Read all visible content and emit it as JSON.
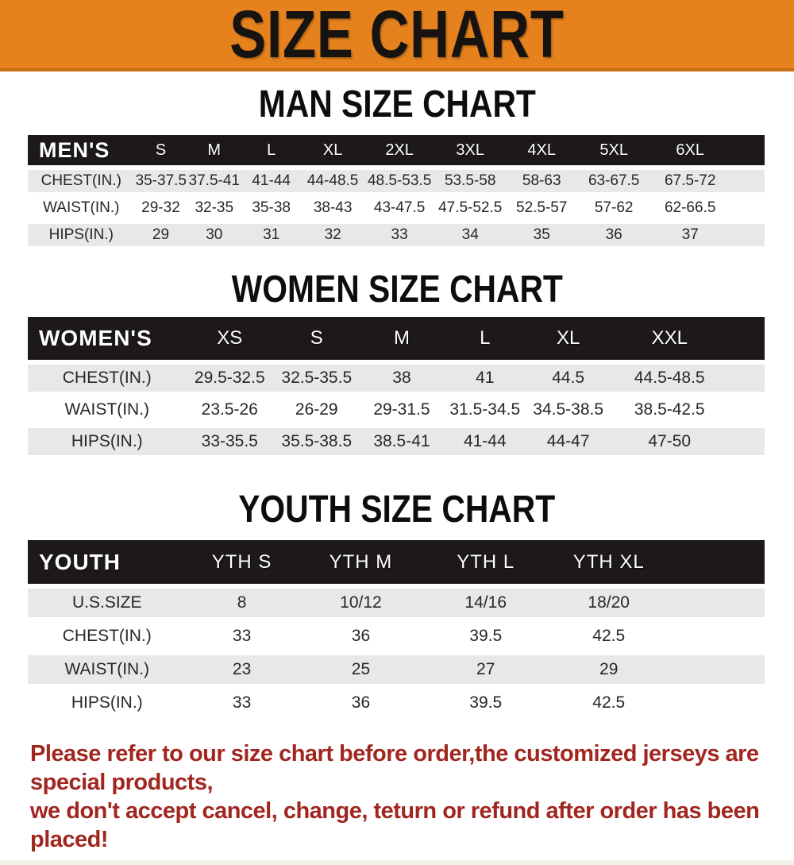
{
  "banner": {
    "title": "SIZE CHART",
    "background_color": "#e6821e",
    "text_color": "#171310"
  },
  "sections": {
    "men": {
      "heading": "MAN SIZE CHART",
      "table": {
        "header": [
          "MEN'S",
          "S",
          "M",
          "L",
          "XL",
          "2XL",
          "3XL",
          "4XL",
          "5XL",
          "6XL",
          ""
        ],
        "rows": [
          [
            "CHEST(IN.)",
            "35-37.5",
            "37.5-41",
            "41-44",
            "44-48.5",
            "48.5-53.5",
            "53.5-58",
            "58-63",
            "63-67.5",
            "67.5-72",
            ""
          ],
          [
            "WAIST(IN.)",
            "29-32",
            "32-35",
            "35-38",
            "38-43",
            "43-47.5",
            "47.5-52.5",
            "52.5-57",
            "57-62",
            "62-66.5",
            ""
          ],
          [
            "HIPS(IN.)",
            "29",
            "30",
            "31",
            "32",
            "33",
            "34",
            "35",
            "36",
            "37",
            ""
          ]
        ]
      }
    },
    "women": {
      "heading": "WOMEN SIZE CHART",
      "table": {
        "header": [
          "WOMEN'S",
          "XS",
          "S",
          "M",
          "L",
          "XL",
          "XXL",
          ""
        ],
        "rows": [
          [
            "CHEST(IN.)",
            "29.5-32.5",
            "32.5-35.5",
            "38",
            "41",
            "44.5",
            "44.5-48.5",
            ""
          ],
          [
            "WAIST(IN.)",
            "23.5-26",
            "26-29",
            "29-31.5",
            "31.5-34.5",
            "34.5-38.5",
            "38.5-42.5",
            ""
          ],
          [
            "HIPS(IN.)",
            "33-35.5",
            "35.5-38.5",
            "38.5-41",
            "41-44",
            "44-47",
            "47-50",
            ""
          ]
        ]
      }
    },
    "youth": {
      "heading": "YOUTH SIZE CHART",
      "table": {
        "header": [
          "YOUTH",
          "YTH S",
          "YTH M",
          "YTH L",
          "YTH XL",
          ""
        ],
        "rows": [
          [
            "U.S.SIZE",
            "8",
            "10/12",
            "14/16",
            "18/20",
            ""
          ],
          [
            "CHEST(IN.)",
            "33",
            "36",
            "39.5",
            "42.5",
            ""
          ],
          [
            "WAIST(IN.)",
            "23",
            "25",
            "27",
            "29",
            ""
          ],
          [
            "HIPS(IN.)",
            "33",
            "36",
            "39.5",
            "42.5",
            ""
          ]
        ]
      }
    }
  },
  "footnote": {
    "line1": "Please refer to our size chart before order,the customized jerseys are special products,",
    "line2": "we don't accept cancel, change, teturn or refund after order has been placed!",
    "text_color": "#a1261f"
  },
  "colors": {
    "table_header_bar": "#1d1919",
    "row_stripe_gray": "#e9e8e8",
    "table_text": "#272727"
  }
}
